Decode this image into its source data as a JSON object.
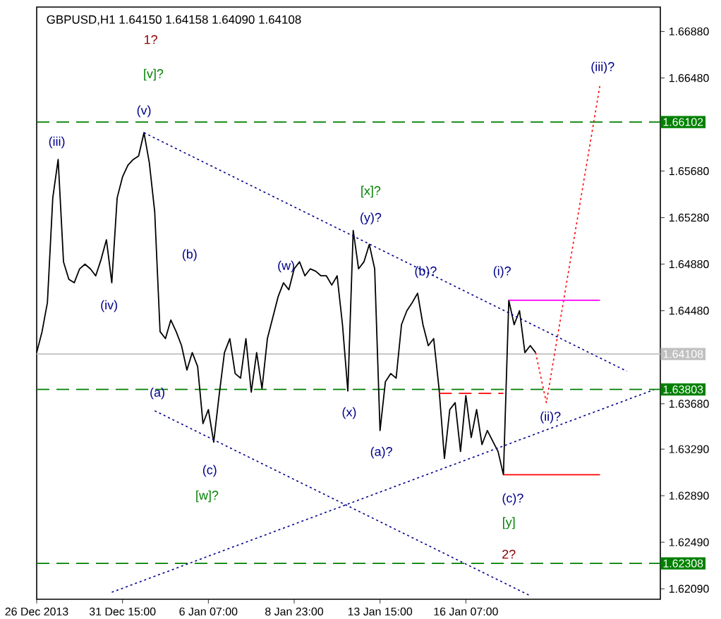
{
  "chart_data": {
    "type": "line",
    "title": "GBPUSD,H1  1.64150 1.64158 1.64090 1.64108",
    "categories": [
      "26 Dec 2013",
      null,
      null,
      null,
      null,
      null,
      null,
      null,
      null,
      null,
      null,
      null,
      null,
      null,
      null,
      null,
      "31 Dec 15:00",
      null,
      null,
      null,
      null,
      null,
      null,
      null,
      null,
      null,
      null,
      null,
      null,
      null,
      null,
      null,
      "6 Jan 07:00",
      null,
      null,
      null,
      null,
      null,
      null,
      null,
      null,
      null,
      null,
      null,
      null,
      null,
      null,
      null,
      "8 Jan 23:00",
      null,
      null,
      null,
      null,
      null,
      null,
      null,
      null,
      null,
      null,
      null,
      null,
      null,
      null,
      null,
      "13 Jan 15:00",
      null,
      null,
      null,
      null,
      null,
      null,
      null,
      null,
      null,
      null,
      null,
      null,
      null,
      null,
      null,
      "16 Jan 07:00",
      null,
      null,
      null,
      null,
      null,
      null,
      null,
      null,
      null,
      null,
      null,
      null,
      null,
      null,
      null,
      null,
      null,
      null,
      null,
      null,
      null,
      null,
      null,
      null,
      null,
      null,
      null,
      null,
      null,
      null,
      null,
      null,
      null,
      null,
      null,
      null
    ],
    "ylim": [
      1.62,
      1.6709
    ],
    "yticks": [
      {
        "value": 1.6209,
        "label": "1.62090"
      },
      {
        "value": 1.6249,
        "label": "1.62490"
      },
      {
        "value": 1.6289,
        "label": "1.62890"
      },
      {
        "value": 1.6329,
        "label": "1.63290"
      },
      {
        "value": 1.6368,
        "label": "1.63680"
      },
      {
        "value": 1.6448,
        "label": "1.64480"
      },
      {
        "value": 1.6488,
        "label": "1.64880"
      },
      {
        "value": 1.6528,
        "label": "1.65280"
      },
      {
        "value": 1.6568,
        "label": "1.65680"
      },
      {
        "value": 1.6648,
        "label": "1.66480"
      },
      {
        "value": 1.6688,
        "label": "1.66880"
      }
    ],
    "grid": false,
    "series": [
      {
        "color": "#000000",
        "line_style": "solid",
        "values": [
          1.6412,
          1.643,
          1.6455,
          1.6545,
          1.6578,
          1.649,
          1.6475,
          1.6472,
          1.6484,
          1.6488,
          1.6484,
          1.6478,
          1.6492,
          1.6509,
          1.6472,
          1.6545,
          1.6563,
          1.6573,
          1.6578,
          1.6581,
          1.6601,
          1.6575,
          1.6533,
          1.643,
          1.6424,
          1.644,
          1.643,
          1.6418,
          1.6397,
          1.6412,
          1.64,
          1.6351,
          1.6363,
          1.6335,
          1.6375,
          1.6412,
          1.6424,
          1.6394,
          1.639,
          1.6424,
          1.6378,
          1.6412,
          1.6381,
          1.6424,
          1.6442,
          1.646,
          1.6472,
          1.6466,
          1.6484,
          1.649,
          1.6478,
          1.6484,
          1.6482,
          1.6478,
          1.6478,
          1.647,
          1.6478,
          1.6436,
          1.6379,
          1.6517,
          1.6484,
          1.649,
          1.6505,
          1.6484,
          1.6345,
          1.6387,
          1.6394,
          1.639,
          1.6436,
          1.6448,
          1.6455,
          1.6463,
          1.6436,
          1.6418,
          1.6424,
          1.6381,
          1.6321,
          1.6363,
          1.6369,
          1.6327,
          1.6375,
          1.6339,
          1.6363,
          1.6333,
          1.6345,
          1.6336,
          1.6327,
          1.6307,
          1.6457,
          1.6436,
          1.6448,
          1.6412,
          1.6418,
          1.6412,
          null,
          null,
          null,
          null,
          null,
          null,
          null,
          null,
          null,
          null,
          null,
          null,
          null,
          null,
          null,
          null,
          null,
          null,
          null,
          null,
          null,
          null,
          null
        ]
      },
      {
        "type": "line",
        "color": "#00008b",
        "line_style": "dotted",
        "values": [
          null,
          null,
          null,
          null,
          null,
          null,
          null,
          null,
          null,
          null,
          null,
          null,
          null,
          null,
          null,
          null,
          null,
          null,
          null,
          null,
          1.6601,
          null,
          null,
          null,
          null,
          null,
          null,
          null,
          null,
          null,
          null,
          null,
          null,
          null,
          null,
          null,
          null,
          null,
          null,
          null,
          null,
          null,
          null,
          null,
          null,
          null,
          null,
          null,
          null,
          null,
          null,
          null,
          null,
          null,
          null,
          null,
          null,
          null,
          null,
          null,
          null,
          null,
          null,
          null,
          null,
          null,
          null,
          null,
          null,
          null,
          null,
          null,
          null,
          null,
          null,
          null,
          null,
          null,
          null,
          null,
          null,
          null,
          null,
          null,
          null,
          null,
          null,
          null,
          null,
          null,
          null,
          null,
          null,
          null,
          null,
          null,
          null,
          null,
          null,
          null,
          null,
          null,
          null,
          null,
          null,
          null,
          null,
          null,
          null,
          null,
          1.6396,
          null,
          null,
          null,
          null,
          null,
          null
        ]
      },
      {
        "type": "line",
        "color": "#00008b",
        "line_style": "dotted",
        "values": [
          null,
          null,
          null,
          null,
          null,
          null,
          null,
          null,
          null,
          null,
          null,
          null,
          null,
          null,
          null,
          null,
          null,
          null,
          null,
          null,
          null,
          null,
          1.6362,
          null,
          null,
          null,
          null,
          null,
          null,
          null,
          null,
          null,
          null,
          null,
          null,
          null,
          null,
          null,
          null,
          null,
          null,
          null,
          null,
          null,
          null,
          null,
          null,
          null,
          null,
          null,
          null,
          null,
          null,
          null,
          null,
          null,
          null,
          null,
          null,
          null,
          null,
          null,
          null,
          null,
          null,
          null,
          null,
          null,
          null,
          null,
          null,
          null,
          null,
          null,
          null,
          null,
          null,
          null,
          null,
          null,
          null,
          null,
          null,
          null,
          null,
          null,
          null,
          null,
          null,
          null,
          null,
          null,
          1.6203,
          null,
          null,
          null,
          null,
          null,
          null,
          null,
          null,
          null,
          null,
          null,
          null,
          null,
          null,
          null,
          null,
          null,
          null,
          null,
          null,
          null,
          null,
          null,
          null
        ]
      },
      {
        "type": "line",
        "color": "#00008b",
        "line_style": "dotted",
        "values": [
          null,
          null,
          null,
          null,
          null,
          null,
          null,
          null,
          null,
          null,
          null,
          null,
          null,
          null,
          1.6206,
          null,
          null,
          null,
          null,
          null,
          null,
          null,
          null,
          null,
          null,
          null,
          null,
          null,
          null,
          null,
          null,
          null,
          null,
          null,
          null,
          null,
          null,
          null,
          null,
          null,
          null,
          null,
          null,
          null,
          null,
          null,
          null,
          null,
          null,
          null,
          null,
          null,
          null,
          null,
          null,
          null,
          null,
          null,
          null,
          null,
          null,
          null,
          null,
          null,
          null,
          null,
          null,
          null,
          null,
          null,
          null,
          null,
          null,
          null,
          null,
          null,
          null,
          null,
          null,
          null,
          null,
          null,
          null,
          null,
          null,
          null,
          null,
          null,
          null,
          null,
          null,
          null,
          null,
          null,
          null,
          null,
          null,
          null,
          null,
          null,
          null,
          null,
          null,
          null,
          null,
          null,
          null,
          null,
          null,
          null,
          null,
          null,
          null,
          null,
          null,
          1.638,
          null
        ]
      },
      {
        "type": "line",
        "color": "#ff0000",
        "line_style": "dotted",
        "values": [
          null,
          null,
          null,
          null,
          null,
          null,
          null,
          null,
          null,
          null,
          null,
          null,
          null,
          null,
          null,
          null,
          null,
          null,
          null,
          null,
          null,
          null,
          null,
          null,
          null,
          null,
          null,
          null,
          null,
          null,
          null,
          null,
          null,
          null,
          null,
          null,
          null,
          null,
          null,
          null,
          null,
          null,
          null,
          null,
          null,
          null,
          null,
          null,
          null,
          null,
          null,
          null,
          null,
          null,
          null,
          null,
          null,
          null,
          null,
          null,
          null,
          null,
          null,
          null,
          null,
          null,
          null,
          null,
          null,
          null,
          null,
          null,
          null,
          null,
          null,
          null,
          null,
          null,
          null,
          null,
          null,
          null,
          null,
          null,
          null,
          null,
          null,
          null,
          null,
          null,
          null,
          null,
          null,
          1.6412,
          null,
          1.6369,
          null,
          null,
          null,
          null,
          null,
          null,
          null,
          null,
          null,
          1.6642,
          null,
          null,
          null,
          null,
          null,
          null,
          null,
          null,
          null,
          null,
          null
        ]
      },
      {
        "type": "line",
        "color": "#ff0000",
        "line_style": "dashed",
        "values": [
          null,
          null,
          null,
          null,
          null,
          null,
          null,
          null,
          null,
          null,
          null,
          null,
          null,
          null,
          null,
          null,
          null,
          null,
          null,
          null,
          null,
          null,
          null,
          null,
          null,
          null,
          null,
          null,
          null,
          null,
          null,
          null,
          null,
          null,
          null,
          null,
          null,
          null,
          null,
          null,
          null,
          null,
          null,
          null,
          null,
          null,
          null,
          null,
          null,
          null,
          null,
          null,
          null,
          null,
          null,
          null,
          null,
          null,
          null,
          null,
          null,
          null,
          null,
          null,
          null,
          null,
          null,
          null,
          null,
          null,
          null,
          null,
          null,
          null,
          null,
          1.6377,
          null,
          null,
          null,
          null,
          null,
          null,
          null,
          null,
          null,
          null,
          null,
          1.6377,
          null,
          null,
          null,
          null,
          null,
          null,
          null,
          null,
          null,
          null,
          null,
          null,
          null,
          null,
          null,
          null,
          null,
          null,
          null,
          null,
          null,
          null,
          null,
          null,
          null,
          null,
          null,
          null,
          null
        ]
      },
      {
        "type": "line",
        "color": "#ff00ff",
        "line_style": "solid",
        "values": [
          null,
          null,
          null,
          null,
          null,
          null,
          null,
          null,
          null,
          null,
          null,
          null,
          null,
          null,
          null,
          null,
          null,
          null,
          null,
          null,
          null,
          null,
          null,
          null,
          null,
          null,
          null,
          null,
          null,
          null,
          null,
          null,
          null,
          null,
          null,
          null,
          null,
          null,
          null,
          null,
          null,
          null,
          null,
          null,
          null,
          null,
          null,
          null,
          null,
          null,
          null,
          null,
          null,
          null,
          null,
          null,
          null,
          null,
          null,
          null,
          null,
          null,
          null,
          null,
          null,
          null,
          null,
          null,
          null,
          null,
          null,
          null,
          null,
          null,
          null,
          null,
          null,
          null,
          null,
          null,
          null,
          null,
          null,
          null,
          null,
          null,
          null,
          null,
          1.6457,
          null,
          null,
          null,
          null,
          null,
          null,
          null,
          null,
          null,
          null,
          null,
          null,
          null,
          null,
          null,
          null,
          1.6457,
          null,
          null,
          null,
          null,
          null,
          null,
          null,
          null,
          null,
          null,
          null
        ]
      },
      {
        "type": "line",
        "color": "#ff0000",
        "line_style": "solid",
        "values": [
          null,
          null,
          null,
          null,
          null,
          null,
          null,
          null,
          null,
          null,
          null,
          null,
          null,
          null,
          null,
          null,
          null,
          null,
          null,
          null,
          null,
          null,
          null,
          null,
          null,
          null,
          null,
          null,
          null,
          null,
          null,
          null,
          null,
          null,
          null,
          null,
          null,
          null,
          null,
          null,
          null,
          null,
          null,
          null,
          null,
          null,
          null,
          null,
          null,
          null,
          null,
          null,
          null,
          null,
          null,
          null,
          null,
          null,
          null,
          null,
          null,
          null,
          null,
          null,
          null,
          null,
          null,
          null,
          null,
          null,
          null,
          null,
          null,
          null,
          null,
          null,
          null,
          null,
          null,
          null,
          null,
          null,
          null,
          null,
          null,
          null,
          null,
          1.6307,
          null,
          null,
          null,
          null,
          null,
          null,
          null,
          null,
          null,
          null,
          null,
          null,
          null,
          null,
          null,
          null,
          null,
          1.6307,
          null,
          null,
          null,
          null,
          null,
          null,
          null,
          null,
          null,
          null,
          null
        ]
      }
    ],
    "ref_lines": [
      {
        "axis": "y",
        "value": 1.66102,
        "label": "1.66102",
        "color": "#008000",
        "line_style": "dashed"
      },
      {
        "axis": "y",
        "value": 1.64108,
        "label": "1.64108",
        "color": "#c0c0c0",
        "line_style": "solid"
      },
      {
        "axis": "y",
        "value": 1.63803,
        "label": "1.63803",
        "color": "#008000",
        "line_style": "dashed"
      },
      {
        "axis": "y",
        "value": 1.62308,
        "label": "1.62308",
        "color": "#008000",
        "line_style": "dashed"
      }
    ],
    "annotations": [
      "1?",
      "[v]?",
      "(v)",
      "(iii)",
      "(iv)",
      "(b)",
      "(w)",
      "[x]?",
      "(y)?",
      "(b)?",
      "(i)?",
      "(a)",
      "(c)",
      "[w]?",
      "(x)",
      "(a)?",
      "(c)?",
      "[y]",
      "2?",
      "(ii)?",
      "(iii)?"
    ]
  }
}
